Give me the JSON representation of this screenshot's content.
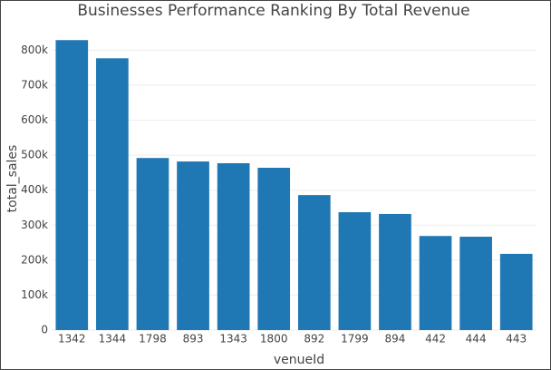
{
  "chart_data": {
    "type": "bar",
    "title": "Businesses Performance Ranking By Total Revenue",
    "x_label": "venueId",
    "y_label": "total_sales",
    "categories": [
      "1342",
      "1344",
      "1798",
      "893",
      "1343",
      "1800",
      "892",
      "1799",
      "894",
      "442",
      "444",
      "443"
    ],
    "values": [
      829000,
      777000,
      492000,
      482000,
      477000,
      464000,
      386000,
      337000,
      332000,
      269000,
      267000,
      218000
    ],
    "color": "#1f77b4",
    "ylim": [
      0,
      840000
    ],
    "yticks": [
      0,
      {
        "value": 100000,
        "label": "100k"
      },
      {
        "value": 200000,
        "label": "200k"
      },
      {
        "value": 300000,
        "label": "300k"
      },
      {
        "value": 400000,
        "label": "400k"
      },
      {
        "value": 500000,
        "label": "500k"
      },
      {
        "value": 600000,
        "label": "600k"
      },
      {
        "value": 700000,
        "label": "700k"
      },
      {
        "value": 800000,
        "label": "800k"
      }
    ],
    "grid": true
  }
}
